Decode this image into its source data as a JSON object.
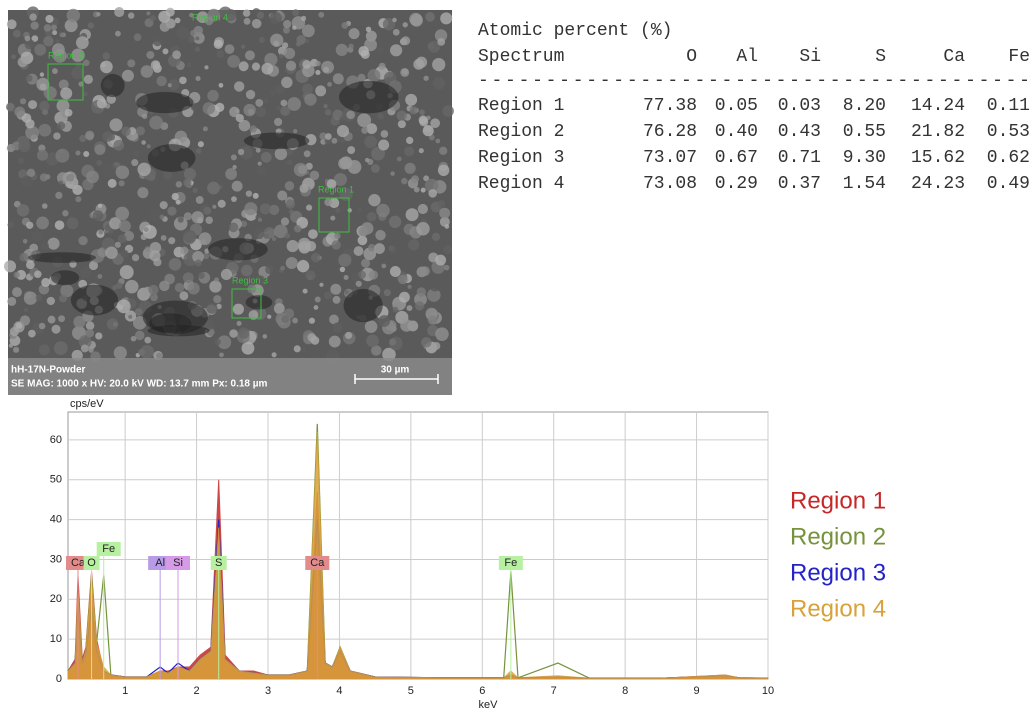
{
  "image": {
    "regions": [
      "Region 1",
      "Region 2",
      "Region 3",
      "Region 4"
    ],
    "sample": "hH-17N-Powder",
    "info": "SE  MAG: 1000 x  HV: 20.0 kV  WD: 13.7 mm  Px: 0.18 µm",
    "scale": "30 µm"
  },
  "table": {
    "title": "Atomic percent (%)",
    "header": [
      "Spectrum",
      "O",
      "Al",
      "Si",
      "S",
      "Ca",
      "Fe"
    ],
    "rule": "-----------------------------------------",
    "rows": [
      [
        "Region 1",
        "77.38",
        "0.05",
        "0.03",
        "8.20",
        "14.24",
        "0.11"
      ],
      [
        "Region 2",
        "76.28",
        "0.40",
        "0.43",
        "0.55",
        "21.82",
        "0.53"
      ],
      [
        "Region 3",
        "73.07",
        "0.67",
        "0.71",
        "9.30",
        "15.62",
        "0.62"
      ],
      [
        "Region 4",
        "73.08",
        "0.29",
        "0.37",
        "1.54",
        "24.23",
        "0.49"
      ]
    ]
  },
  "chart_data": {
    "type": "line",
    "y_label": "cps/eV",
    "x_label": "keV",
    "xlim": [
      0.2,
      10
    ],
    "ylim": [
      0,
      67
    ],
    "xticks": [
      1,
      2,
      3,
      4,
      5,
      6,
      7,
      8,
      9,
      10
    ],
    "yticks": [
      0,
      10,
      20,
      30,
      40,
      50,
      60
    ],
    "grid": true,
    "x": [
      0.2,
      0.3,
      0.34,
      0.4,
      0.45,
      0.53,
      0.6,
      0.7,
      0.8,
      1.0,
      1.3,
      1.49,
      1.6,
      1.74,
      1.9,
      2.05,
      2.2,
      2.31,
      2.4,
      2.6,
      2.8,
      3.0,
      3.3,
      3.55,
      3.69,
      3.8,
      3.9,
      4.01,
      4.15,
      4.5,
      5.5,
      6.3,
      6.4,
      6.5,
      7.06,
      7.5,
      8.5,
      9.4,
      9.6,
      10
    ],
    "series": [
      {
        "name": "Region 1",
        "color": "#c62828",
        "fill": true,
        "values": [
          2,
          5,
          26,
          5,
          8,
          27,
          10,
          2,
          1,
          0.5,
          0.5,
          2,
          2,
          3,
          3,
          6,
          8,
          50,
          6,
          2,
          2,
          1,
          1,
          2,
          47,
          4,
          3,
          8,
          2,
          0.5,
          0.3,
          0.3,
          1,
          0.3,
          0.5,
          0.2,
          0.2,
          1,
          0.3,
          0.2
        ]
      },
      {
        "name": "Region 2",
        "color": "#76923c",
        "fill": false,
        "values": [
          2,
          4,
          20,
          4,
          7,
          26,
          9,
          26,
          1,
          0.5,
          0.5,
          1,
          1,
          1.5,
          2,
          4,
          6,
          33,
          5,
          2,
          1.5,
          1,
          1,
          2,
          64,
          4,
          3,
          8,
          2,
          0.5,
          0.3,
          0.3,
          27,
          0.3,
          4,
          0.2,
          0.2,
          0.8,
          0.3,
          0.2
        ]
      },
      {
        "name": "Region 3",
        "color": "#2323c8",
        "fill": false,
        "values": [
          2,
          4,
          18,
          4,
          6,
          18,
          7,
          2,
          1,
          0.5,
          0.5,
          3,
          1.5,
          4,
          2,
          5,
          7,
          40,
          5,
          2,
          1.5,
          1,
          1,
          2,
          40,
          4,
          3,
          7,
          2,
          0.5,
          0.3,
          0.3,
          1,
          0.3,
          0.5,
          0.2,
          0.2,
          0.8,
          0.3,
          0.2
        ]
      },
      {
        "name": "Region 4",
        "color": "#d8a23a",
        "fill": true,
        "values": [
          2,
          4,
          22,
          4,
          7,
          25,
          9,
          3,
          1,
          0.5,
          0.5,
          2,
          1.5,
          3,
          2,
          5,
          7,
          38,
          5,
          2,
          1.5,
          1,
          1,
          2,
          62,
          4,
          3,
          8,
          2,
          0.5,
          0.3,
          0.3,
          2,
          0.3,
          0.8,
          0.2,
          0.2,
          1,
          0.3,
          0.2
        ]
      }
    ],
    "annotations": [
      {
        "text": "Ca",
        "x": 0.34,
        "color": "#e38b8b"
      },
      {
        "text": "O",
        "x": 0.53,
        "color": "#b6f0a0"
      },
      {
        "text": "Fe",
        "x": 0.7,
        "color": "#b6f0a0"
      },
      {
        "text": "Al",
        "x": 1.49,
        "color": "#b79be6"
      },
      {
        "text": "Si",
        "x": 1.74,
        "color": "#d59be6"
      },
      {
        "text": "S",
        "x": 2.31,
        "color": "#b6f0a0"
      },
      {
        "text": "Ca",
        "x": 3.69,
        "color": "#e38b8b"
      },
      {
        "text": "Fe",
        "x": 6.4,
        "color": "#b6f0a0"
      }
    ]
  }
}
